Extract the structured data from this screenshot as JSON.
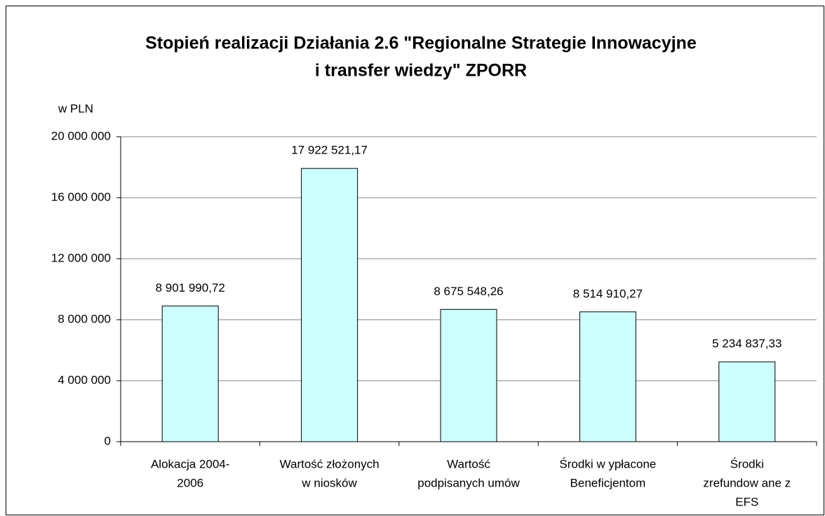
{
  "chart_data": {
    "type": "bar",
    "title": [
      "Stopień realizacji Działania 2.6 \"Regionalne Strategie Innowacyjne",
      "i transfer wiedzy\" ZPORR"
    ],
    "ylabel": "w PLN",
    "categories": [
      [
        "Alokacja 2004-",
        "2006"
      ],
      [
        "Wartość złożonych",
        "w niosków"
      ],
      [
        "Wartość",
        "podpisanych umów"
      ],
      [
        "Środki w ypłacone",
        "Beneficjentom"
      ],
      [
        "Środki",
        "zrefundow ane z",
        "EFS"
      ]
    ],
    "values": [
      8901990.72,
      17922521.17,
      8675548.26,
      8514910.27,
      5234837.33
    ],
    "value_labels": [
      "8 901 990,72",
      "17 922 521,17",
      "8 675 548,26",
      "8 514 910,27",
      "5 234 837,33"
    ],
    "color": "#ccffff",
    "ylim": [
      0,
      20000000
    ],
    "yticks": [
      0,
      {
        "value": 4000000,
        "label": "4 000 000"
      },
      {
        "value": 8000000,
        "label": "8 000 000"
      },
      {
        "value": 12000000,
        "label": "12 000 000"
      },
      {
        "value": 16000000,
        "label": "16 000 000"
      },
      {
        "value": 20000000,
        "label": "20 000 000"
      }
    ],
    "grid": true
  }
}
